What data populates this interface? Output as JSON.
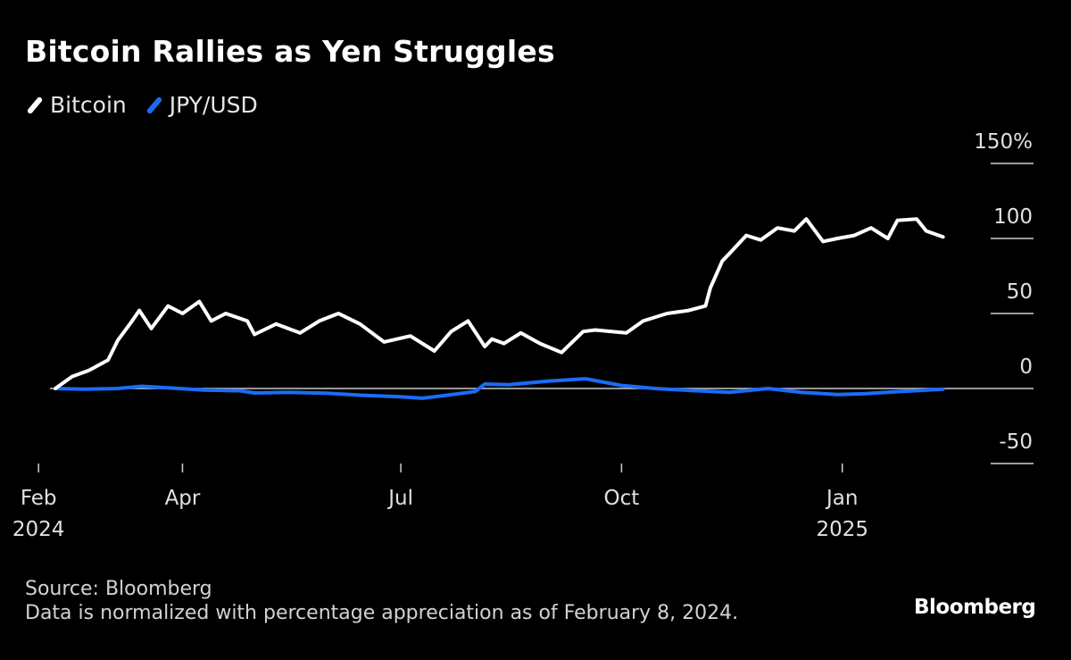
{
  "chart_data": {
    "type": "line",
    "title": "Bitcoin Rallies as Yen Struggles",
    "ylabel": "",
    "xlabel": "",
    "ylim": [
      -50,
      150
    ],
    "yticks": [
      {
        "value": 150,
        "label": "150%"
      },
      {
        "value": 100,
        "label": "100"
      },
      {
        "value": 50,
        "label": "50"
      },
      {
        "value": 0,
        "label": "0"
      },
      {
        "value": -50,
        "label": "-50"
      }
    ],
    "xlim": [
      "2024-02-08",
      "2025-02-14"
    ],
    "xticks": [
      {
        "date": "2024-02-01",
        "month": "Feb",
        "year": "2024"
      },
      {
        "date": "2024-04-01",
        "month": "Apr",
        "year": ""
      },
      {
        "date": "2024-07-01",
        "month": "Jul",
        "year": ""
      },
      {
        "date": "2024-10-01",
        "month": "Oct",
        "year": ""
      },
      {
        "date": "2025-01-01",
        "month": "Jan",
        "year": "2025"
      }
    ],
    "grid": false,
    "legend_position": "top-left",
    "series": [
      {
        "name": "Bitcoin",
        "color": "#ffffff",
        "x": [
          "2024-02-08",
          "2024-02-15",
          "2024-02-22",
          "2024-03-01",
          "2024-03-05",
          "2024-03-11",
          "2024-03-14",
          "2024-03-19",
          "2024-03-26",
          "2024-04-01",
          "2024-04-08",
          "2024-04-13",
          "2024-04-19",
          "2024-04-28",
          "2024-05-01",
          "2024-05-10",
          "2024-05-20",
          "2024-05-28",
          "2024-06-05",
          "2024-06-14",
          "2024-06-24",
          "2024-07-05",
          "2024-07-15",
          "2024-07-22",
          "2024-07-29",
          "2024-08-05",
          "2024-08-08",
          "2024-08-13",
          "2024-08-20",
          "2024-08-28",
          "2024-09-06",
          "2024-09-15",
          "2024-09-20",
          "2024-09-27",
          "2024-10-03",
          "2024-10-10",
          "2024-10-20",
          "2024-10-29",
          "2024-11-05",
          "2024-11-07",
          "2024-11-12",
          "2024-11-15",
          "2024-11-22",
          "2024-11-28",
          "2024-12-05",
          "2024-12-12",
          "2024-12-17",
          "2024-12-24",
          "2024-12-30",
          "2025-01-06",
          "2025-01-13",
          "2025-01-20",
          "2025-01-24",
          "2025-02-01",
          "2025-02-05",
          "2025-02-12"
        ],
        "y": [
          0,
          8,
          12,
          19,
          32,
          45,
          52,
          40,
          55,
          50,
          58,
          45,
          50,
          45,
          36,
          43,
          37,
          45,
          50,
          43,
          31,
          35,
          25,
          38,
          45,
          28,
          33,
          30,
          37,
          30,
          24,
          38,
          39,
          38,
          37,
          45,
          50,
          52,
          55,
          67,
          85,
          90,
          102,
          99,
          107,
          105,
          113,
          98,
          100,
          102,
          107,
          100,
          112,
          113,
          105,
          101
        ]
      },
      {
        "name": "JPY/USD",
        "color": "#1a6cf7",
        "x": [
          "2024-02-08",
          "2024-02-20",
          "2024-03-05",
          "2024-03-15",
          "2024-03-26",
          "2024-04-10",
          "2024-04-25",
          "2024-05-01",
          "2024-05-15",
          "2024-06-01",
          "2024-06-15",
          "2024-07-01",
          "2024-07-10",
          "2024-07-20",
          "2024-08-01",
          "2024-08-05",
          "2024-08-15",
          "2024-09-01",
          "2024-09-16",
          "2024-10-01",
          "2024-10-15",
          "2024-11-01",
          "2024-11-15",
          "2024-12-01",
          "2024-12-15",
          "2024-12-30",
          "2025-01-10",
          "2025-01-25",
          "2025-02-12"
        ],
        "y": [
          0,
          -0.5,
          0,
          1.5,
          0.5,
          -1,
          -1.5,
          -3,
          -2.5,
          -3.2,
          -4.5,
          -5.5,
          -6.5,
          -4.5,
          -2,
          3,
          2.5,
          5,
          6.5,
          2,
          0,
          -1.5,
          -2.5,
          0,
          -2.5,
          -4,
          -3.5,
          -2,
          -0.5
        ]
      }
    ]
  },
  "legend": [
    {
      "label": "Bitcoin",
      "color": "#ffffff"
    },
    {
      "label": "JPY/USD",
      "color": "#1a6cf7"
    }
  ],
  "footer": {
    "source": "Source: Bloomberg",
    "note": "Data is normalized with percentage appreciation as of February 8, 2024."
  },
  "brand": "Bloomberg"
}
